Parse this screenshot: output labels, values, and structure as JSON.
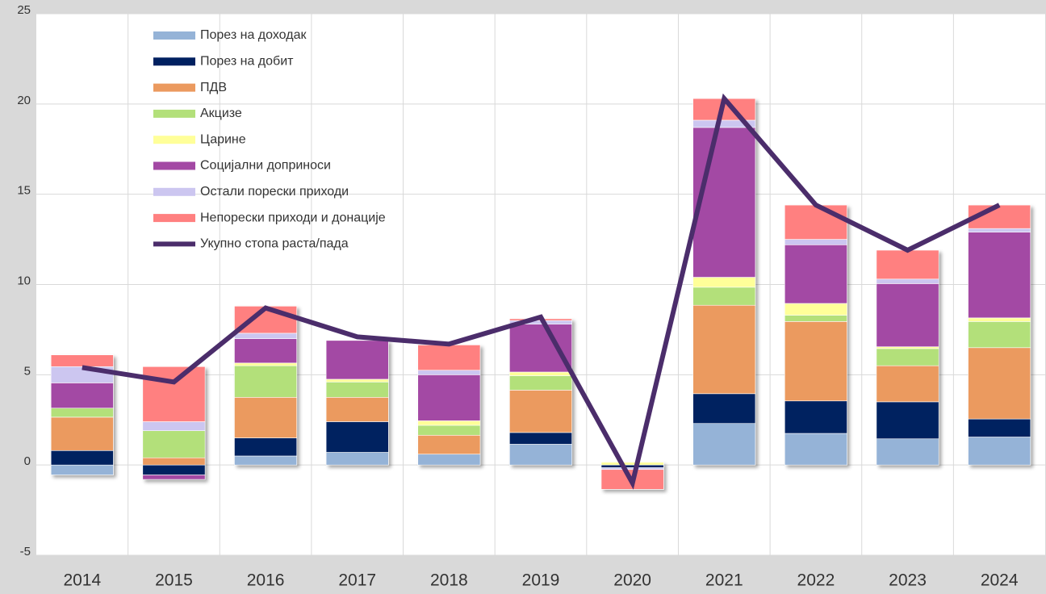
{
  "chart_data": {
    "type": "bar",
    "stacked": true,
    "categories": [
      "2014",
      "2015",
      "2016",
      "2017",
      "2018",
      "2019",
      "2020",
      "2021",
      "2022",
      "2023",
      "2024"
    ],
    "series": [
      {
        "name": "Порез на доходак",
        "color": "#95b3d7",
        "values": [
          -0.55,
          0,
          0.5,
          0.7,
          0.6,
          1.15,
          0,
          2.3,
          1.75,
          1.45,
          1.55
        ]
      },
      {
        "name": "Порез на добит",
        "color": "#002060",
        "values": [
          0.8,
          -0.55,
          1.0,
          1.7,
          0,
          0.65,
          -0.15,
          1.65,
          1.8,
          2.05,
          1.0
        ]
      },
      {
        "name": "ПДВ",
        "color": "#eb9a5f",
        "values": [
          1.85,
          0.4,
          2.25,
          1.35,
          1.05,
          2.35,
          0,
          4.9,
          4.4,
          2.0,
          3.95
        ]
      },
      {
        "name": "Акцизе",
        "color": "#b3e07a",
        "values": [
          0.5,
          1.5,
          1.75,
          0.85,
          0.55,
          0.8,
          0,
          1.0,
          0.35,
          0.95,
          1.45
        ]
      },
      {
        "name": "Царине",
        "color": "#ffff99",
        "values": [
          0,
          0,
          0.15,
          0.15,
          0.25,
          0.2,
          0.15,
          0.55,
          0.65,
          0.1,
          0.2
        ]
      },
      {
        "name": "Социјални доприноси",
        "color": "#a349a4",
        "values": [
          1.4,
          -0.25,
          1.35,
          2.15,
          2.55,
          2.65,
          0,
          8.3,
          3.25,
          3.5,
          4.75
        ]
      },
      {
        "name": "Остали порески приходи",
        "color": "#ccc6f0",
        "values": [
          0.9,
          0.5,
          0.3,
          0,
          0.25,
          0.2,
          -0.1,
          0.4,
          0.3,
          0.25,
          0.2
        ]
      },
      {
        "name": "Непорески приходи и донације",
        "color": "#ff8080",
        "values": [
          0.65,
          3.05,
          1.5,
          0,
          1.4,
          0.1,
          -1.1,
          1.2,
          1.9,
          1.6,
          1.3
        ]
      },
      {
        "name": "Укупно стопа раста/пада",
        "color": "#4b2d6b",
        "type": "line",
        "values": [
          5.4,
          4.6,
          8.7,
          7.1,
          6.7,
          8.2,
          -1.0,
          20.3,
          14.4,
          11.9,
          14.4
        ]
      }
    ],
    "ylim": [
      -5,
      25
    ],
    "yticks": [
      -5,
      0,
      5,
      10,
      15,
      20,
      25
    ],
    "grid": true,
    "legend": "top-left"
  }
}
